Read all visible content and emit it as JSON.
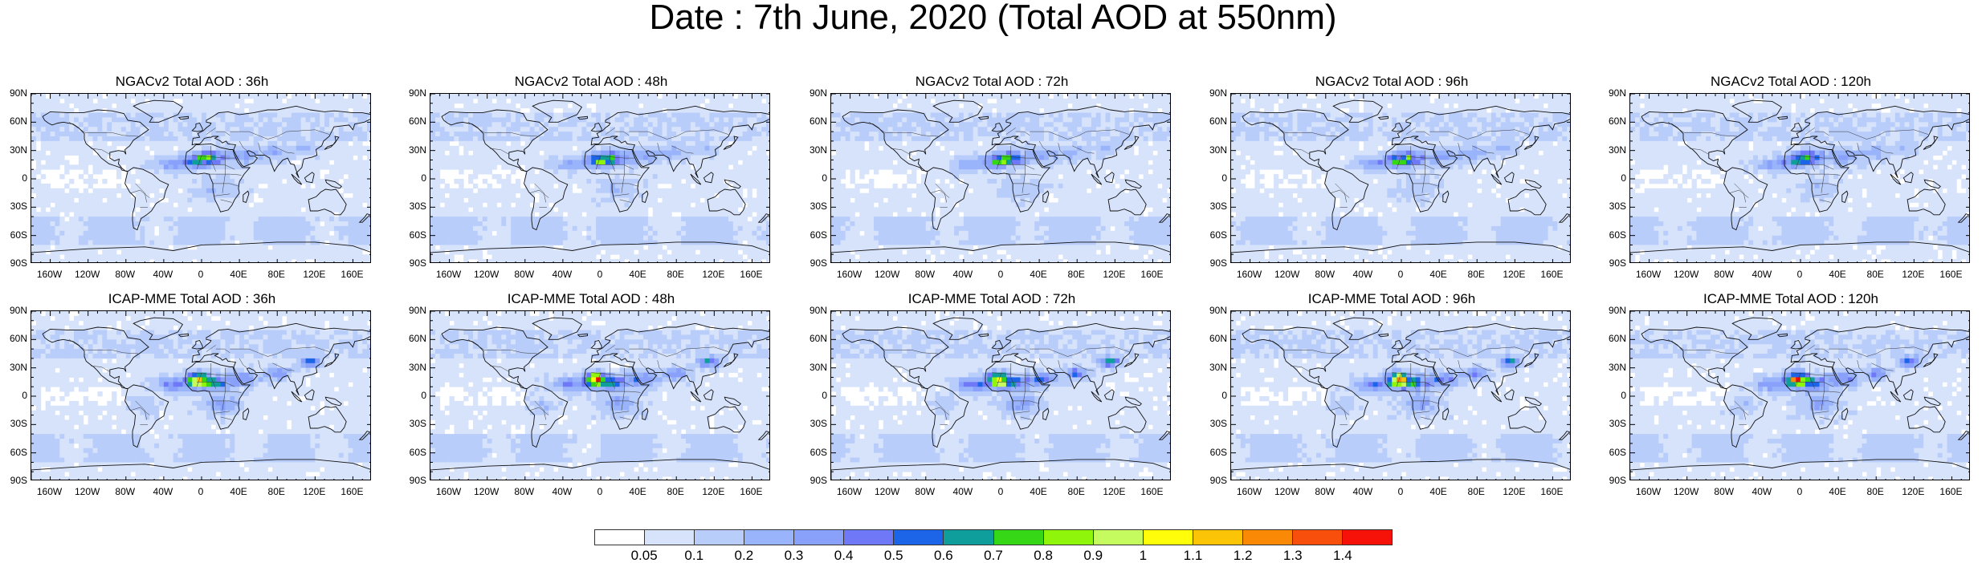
{
  "title": "Date : 7th June, 2020 (Total AOD at 550nm)",
  "lat_labels": [
    "90N",
    "60N",
    "30N",
    "0",
    "30S",
    "60S",
    "90S"
  ],
  "lon_labels": [
    "160W",
    "120W",
    "80W",
    "40W",
    "0",
    "40E",
    "80E",
    "120E",
    "160E"
  ],
  "rows": [
    {
      "model": "NGACv2",
      "panels": [
        {
          "title": "NGACv2 Total AOD : 36h",
          "lead_h": 36
        },
        {
          "title": "NGACv2 Total AOD : 48h",
          "lead_h": 48
        },
        {
          "title": "NGACv2 Total AOD : 72h",
          "lead_h": 72
        },
        {
          "title": "NGACv2 Total AOD : 96h",
          "lead_h": 96
        },
        {
          "title": "NGACv2 Total AOD : 120h",
          "lead_h": 120
        }
      ]
    },
    {
      "model": "ICAP-MME",
      "panels": [
        {
          "title": "ICAP-MME Total AOD : 36h",
          "lead_h": 36
        },
        {
          "title": "ICAP-MME Total AOD : 48h",
          "lead_h": 48
        },
        {
          "title": "ICAP-MME Total AOD : 72h",
          "lead_h": 72
        },
        {
          "title": "ICAP-MME Total AOD : 96h",
          "lead_h": 96
        },
        {
          "title": "ICAP-MME Total AOD : 120h",
          "lead_h": 120
        }
      ]
    }
  ],
  "colorbar": {
    "labels": [
      "0.05",
      "0.1",
      "0.2",
      "0.3",
      "0.4",
      "0.5",
      "0.6",
      "0.7",
      "0.8",
      "0.9",
      "1",
      "1.1",
      "1.2",
      "1.3",
      "1.4"
    ],
    "colors": [
      "#ffffff",
      "#d7e3fb",
      "#b9cdfb",
      "#99b4fa",
      "#8aa1fb",
      "#6f78f6",
      "#1c64e8",
      "#109e9c",
      "#36d716",
      "#8ff50a",
      "#c6fb60",
      "#fffd0a",
      "#fcc406",
      "#fa8a06",
      "#f8500c",
      "#f71209"
    ]
  }
}
